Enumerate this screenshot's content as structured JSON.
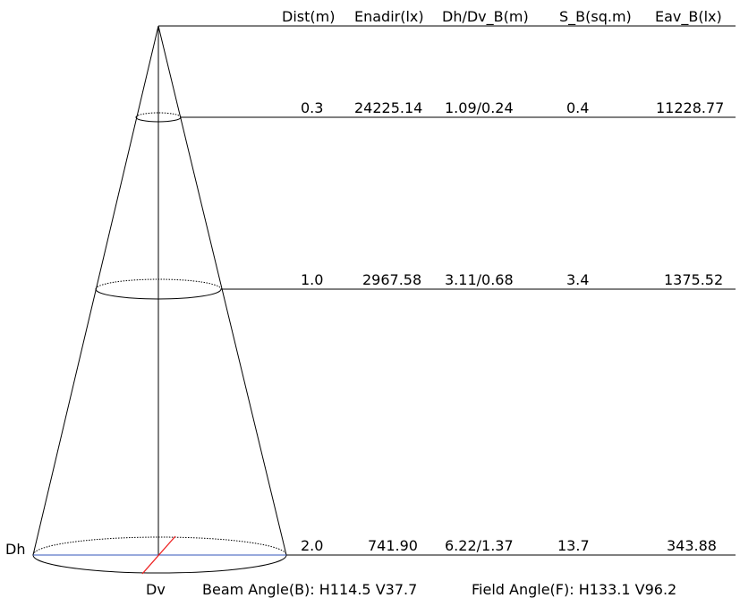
{
  "headers": {
    "dist": "Dist(m)",
    "enadir": "Enadir(lx)",
    "dh_dv": "Dh/Dv_B(m)",
    "s_b": "S_B(sq.m)",
    "eav_b": "Eav_B(lx)"
  },
  "rows": [
    {
      "dist": "0.3",
      "enadir": "24225.14",
      "dh_dv": "1.09/0.24",
      "s_b": "0.4",
      "eav_b": "11228.77"
    },
    {
      "dist": "1.0",
      "enadir": "2967.58",
      "dh_dv": "3.11/0.68",
      "s_b": "3.4",
      "eav_b": "1375.52"
    },
    {
      "dist": "2.0",
      "enadir": "741.90",
      "dh_dv": "6.22/1.37",
      "s_b": "13.7",
      "eav_b": "343.88"
    }
  ],
  "labels": {
    "dh": "Dh",
    "dv": "Dv",
    "beam_angle": "Beam Angle(B): H114.5 V37.7",
    "field_angle": "Field Angle(F): H133.1 V96.2"
  },
  "colors": {
    "line": "#000000",
    "dh_axis": "#3355bb",
    "dv_axis": "#ee2222"
  }
}
